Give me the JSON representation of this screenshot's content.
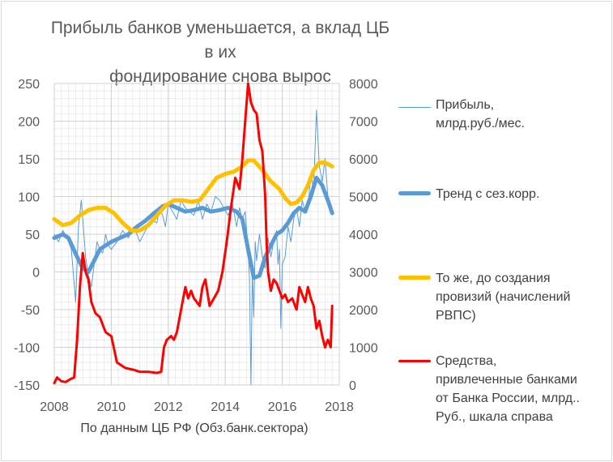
{
  "chart_data": {
    "type": "line",
    "title": "Прибыль банков уменьшается, а вклад ЦБ в их фондирование снова вырос",
    "title_lines": [
      "Прибыль банков уменьшается, а вклад ЦБ в их",
      "фондирование снова вырос"
    ],
    "subtitle": "По данным ЦБ РФ (Обз.банк.сектора)",
    "xlim": [
      2008,
      2018
    ],
    "x_ticks": [
      "2008",
      "2010",
      "2012",
      "2014",
      "2016",
      "2018"
    ],
    "y_left_lim": [
      -150,
      250
    ],
    "y_left_ticks": [
      "250",
      "200",
      "150",
      "100",
      "50",
      "0",
      "-50",
      "-100",
      "-150"
    ],
    "y_right_lim": [
      0,
      8000
    ],
    "y_right_ticks": [
      "8000",
      "7000",
      "6000",
      "5000",
      "4000",
      "3000",
      "2000",
      "1000",
      "0"
    ],
    "grid": true,
    "legend_position": "right",
    "series": [
      {
        "name": "Прибыль,\nмлрд.руб./мес.",
        "axis": "left",
        "color": "#5b9bd5",
        "width": 1,
        "x": [
          2008.0,
          2008.15,
          2008.3,
          2008.45,
          2008.6,
          2008.75,
          2008.85,
          2008.95,
          2009.0,
          2009.1,
          2009.2,
          2009.3,
          2009.4,
          2009.5,
          2009.6,
          2009.7,
          2009.8,
          2009.9,
          2010.0,
          2010.2,
          2010.4,
          2010.6,
          2010.8,
          2011.0,
          2011.2,
          2011.4,
          2011.6,
          2011.7,
          2011.8,
          2011.9,
          2012.0,
          2012.15,
          2012.3,
          2012.45,
          2012.6,
          2012.75,
          2012.9,
          2013.05,
          2013.2,
          2013.35,
          2013.5,
          2013.65,
          2013.8,
          2013.95,
          2014.1,
          2014.25,
          2014.4,
          2014.5,
          2014.6,
          2014.7,
          2014.8,
          2014.85,
          2014.9,
          2014.95,
          2015.0,
          2015.05,
          2015.1,
          2015.2,
          2015.3,
          2015.4,
          2015.5,
          2015.6,
          2015.7,
          2015.8,
          2015.85,
          2015.9,
          2015.95,
          2016.0,
          2016.1,
          2016.2,
          2016.3,
          2016.4,
          2016.5,
          2016.6,
          2016.7,
          2016.8,
          2016.9,
          2017.0,
          2017.1,
          2017.2,
          2017.3,
          2017.4,
          2017.5,
          2017.6,
          2017.7
        ],
        "y": [
          50,
          40,
          55,
          45,
          30,
          -40,
          60,
          95,
          70,
          20,
          -5,
          -20,
          10,
          40,
          30,
          25,
          50,
          35,
          30,
          40,
          55,
          45,
          60,
          40,
          55,
          70,
          65,
          85,
          75,
          60,
          90,
          80,
          70,
          95,
          85,
          80,
          75,
          95,
          70,
          90,
          80,
          100,
          95,
          85,
          75,
          90,
          60,
          85,
          70,
          80,
          30,
          -10,
          -150,
          0,
          -60,
          40,
          15,
          50,
          20,
          5,
          45,
          20,
          40,
          55,
          10,
          30,
          -75,
          10,
          20,
          60,
          40,
          70,
          85,
          60,
          95,
          80,
          85,
          130,
          110,
          215,
          140,
          120,
          150,
          100,
          80
        ]
      },
      {
        "name": "Тренд с сез.корр.",
        "axis": "left",
        "color": "#5b9bd5",
        "width": 5,
        "x": [
          2008.0,
          2008.3,
          2008.5,
          2008.8,
          2009.0,
          2009.2,
          2009.4,
          2009.6,
          2009.8,
          2010.0,
          2010.3,
          2010.6,
          2010.9,
          2011.2,
          2011.5,
          2011.8,
          2012.0,
          2012.3,
          2012.6,
          2012.9,
          2013.2,
          2013.5,
          2013.8,
          2014.1,
          2014.4,
          2014.6,
          2014.8,
          2015.0,
          2015.2,
          2015.4,
          2015.6,
          2015.8,
          2016.0,
          2016.2,
          2016.4,
          2016.6,
          2016.8,
          2017.0,
          2017.2,
          2017.4,
          2017.6,
          2017.75
        ],
        "y": [
          45,
          50,
          45,
          20,
          5,
          0,
          15,
          30,
          35,
          40,
          45,
          50,
          60,
          68,
          78,
          87,
          90,
          85,
          80,
          82,
          85,
          80,
          82,
          85,
          80,
          70,
          30,
          -8,
          -5,
          20,
          35,
          50,
          55,
          65,
          78,
          85,
          80,
          100,
          125,
          115,
          95,
          78
        ]
      },
      {
        "name": "То же, до создания\nпровизий (начислений\nРВПС)",
        "axis": "left",
        "color": "#ffc000",
        "width": 5,
        "x": [
          2008.0,
          2008.3,
          2008.6,
          2008.9,
          2009.2,
          2009.5,
          2009.8,
          2010.1,
          2010.4,
          2010.7,
          2011.0,
          2011.3,
          2011.6,
          2011.9,
          2012.2,
          2012.5,
          2012.8,
          2013.1,
          2013.4,
          2013.7,
          2014.0,
          2014.3,
          2014.6,
          2014.8,
          2015.0,
          2015.3,
          2015.6,
          2015.9,
          2016.1,
          2016.3,
          2016.5,
          2016.7,
          2016.9,
          2017.1,
          2017.3,
          2017.5,
          2017.75
        ],
        "y": [
          70,
          62,
          65,
          75,
          82,
          85,
          85,
          78,
          65,
          55,
          55,
          62,
          75,
          88,
          95,
          95,
          93,
          95,
          110,
          125,
          130,
          133,
          140,
          148,
          148,
          135,
          120,
          110,
          98,
          90,
          92,
          100,
          115,
          135,
          145,
          145,
          140
        ]
      },
      {
        "name": " Средства,\nпривлеченные банками\nот Банка России, млрд..\nРуб., шкала справа",
        "axis": "right",
        "color": "#ff0000",
        "width": 3,
        "x": [
          2008.0,
          2008.1,
          2008.25,
          2008.4,
          2008.55,
          2008.7,
          2008.8,
          2008.9,
          2009.0,
          2009.1,
          2009.2,
          2009.3,
          2009.45,
          2009.6,
          2009.8,
          2010.0,
          2010.2,
          2010.5,
          2010.8,
          2011.0,
          2011.3,
          2011.6,
          2011.75,
          2011.85,
          2011.95,
          2012.1,
          2012.2,
          2012.3,
          2012.4,
          2012.5,
          2012.6,
          2012.7,
          2012.8,
          2012.9,
          2013.0,
          2013.1,
          2013.2,
          2013.3,
          2013.45,
          2013.6,
          2013.75,
          2013.9,
          2014.05,
          2014.2,
          2014.35,
          2014.5,
          2014.6,
          2014.7,
          2014.8,
          2014.9,
          2015.0,
          2015.1,
          2015.2,
          2015.3,
          2015.4,
          2015.45,
          2015.5,
          2015.6,
          2015.7,
          2015.8,
          2015.9,
          2016.0,
          2016.1,
          2016.2,
          2016.35,
          2016.5,
          2016.6,
          2016.7,
          2016.8,
          2016.9,
          2017.0,
          2017.1,
          2017.2,
          2017.3,
          2017.4,
          2017.5,
          2017.6,
          2017.7,
          2017.75
        ],
        "y": [
          50,
          200,
          100,
          80,
          150,
          200,
          1200,
          2600,
          3500,
          3000,
          2800,
          2200,
          1900,
          1800,
          1400,
          1300,
          600,
          450,
          400,
          350,
          350,
          320,
          350,
          1000,
          1200,
          1300,
          1200,
          1400,
          1800,
          2200,
          2600,
          2300,
          2500,
          2300,
          2200,
          2100,
          2600,
          2800,
          2100,
          2300,
          2500,
          3000,
          3800,
          4700,
          5500,
          5200,
          6000,
          7000,
          8000,
          7500,
          7300,
          7200,
          6500,
          6200,
          5000,
          3800,
          3000,
          2500,
          2800,
          2700,
          2500,
          2300,
          2400,
          2200,
          2300,
          2000,
          2600,
          2400,
          2200,
          2600,
          2300,
          2100,
          1500,
          1700,
          1300,
          1000,
          1200,
          1000,
          2100
        ]
      }
    ]
  }
}
